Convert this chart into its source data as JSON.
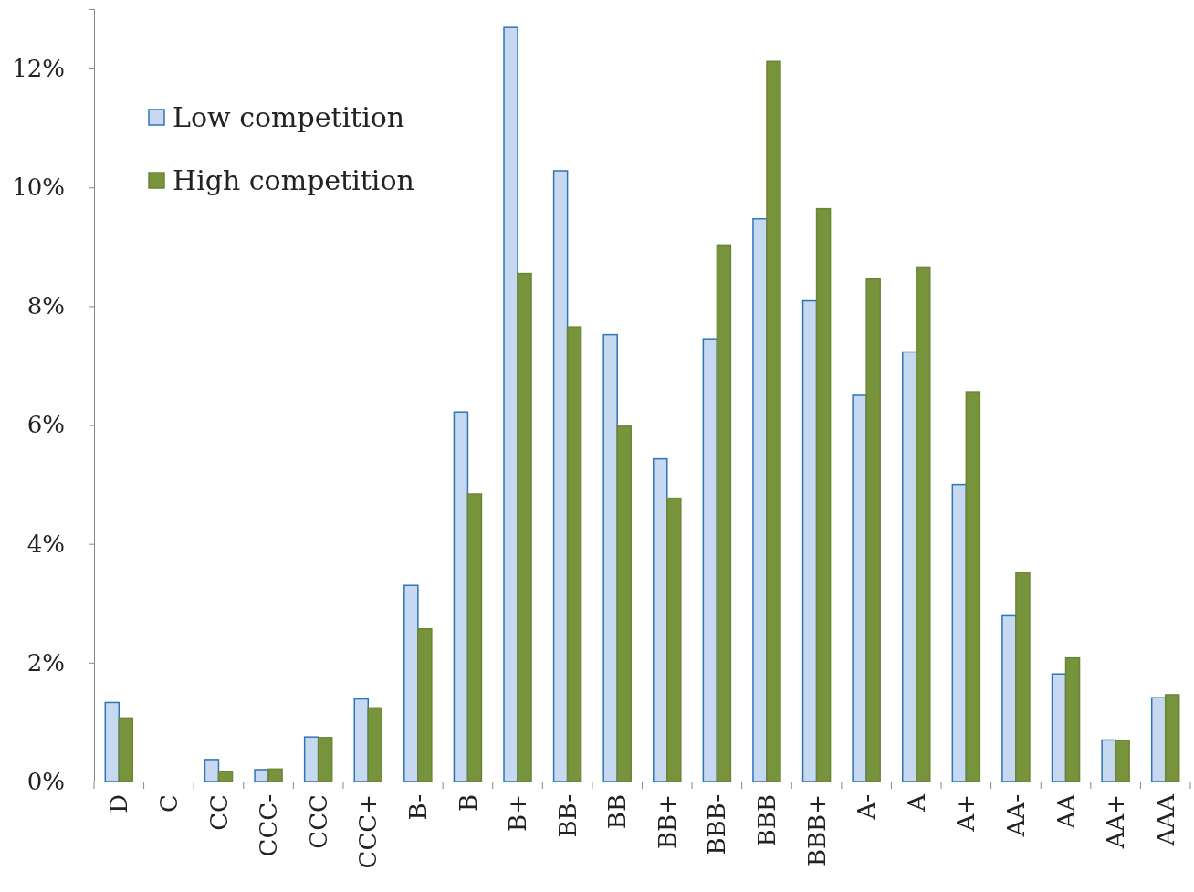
{
  "chart_data": {
    "type": "bar",
    "categories": [
      "D",
      "C",
      "CC",
      "CCC-",
      "CCC",
      "CCC+",
      "B-",
      "B",
      "B+",
      "BB-",
      "BB",
      "BB+",
      "BBB-",
      "BBB",
      "BBB+",
      "A-",
      "A",
      "A+",
      "AA-",
      "AA",
      "AA+",
      "AAA"
    ],
    "series": [
      {
        "name": "Low competition",
        "color": "#c6d9f1",
        "values": [
          1.33,
          0,
          0.37,
          0.2,
          0.75,
          1.39,
          3.3,
          6.22,
          12.69,
          10.28,
          7.52,
          5.43,
          7.45,
          9.47,
          8.09,
          6.5,
          7.23,
          5.0,
          2.79,
          1.81,
          0.7,
          1.41
        ]
      },
      {
        "name": "High competition",
        "color": "#77933c",
        "values": [
          1.07,
          0,
          0.17,
          0.21,
          0.74,
          1.24,
          2.57,
          4.84,
          8.55,
          7.65,
          5.98,
          4.77,
          9.03,
          12.12,
          9.64,
          8.46,
          8.66,
          6.56,
          3.52,
          2.08,
          0.69,
          1.46
        ]
      }
    ],
    "ylim": [
      0,
      13
    ],
    "yticks": [
      {
        "value": 0,
        "label": "0%"
      },
      {
        "value": 2,
        "label": "2%"
      },
      {
        "value": 4,
        "label": "4%"
      },
      {
        "value": 6,
        "label": "6%"
      },
      {
        "value": 8,
        "label": "8%"
      },
      {
        "value": 10,
        "label": "10%"
      },
      {
        "value": 12,
        "label": "12%"
      }
    ],
    "legend": "top left",
    "grid": false
  }
}
